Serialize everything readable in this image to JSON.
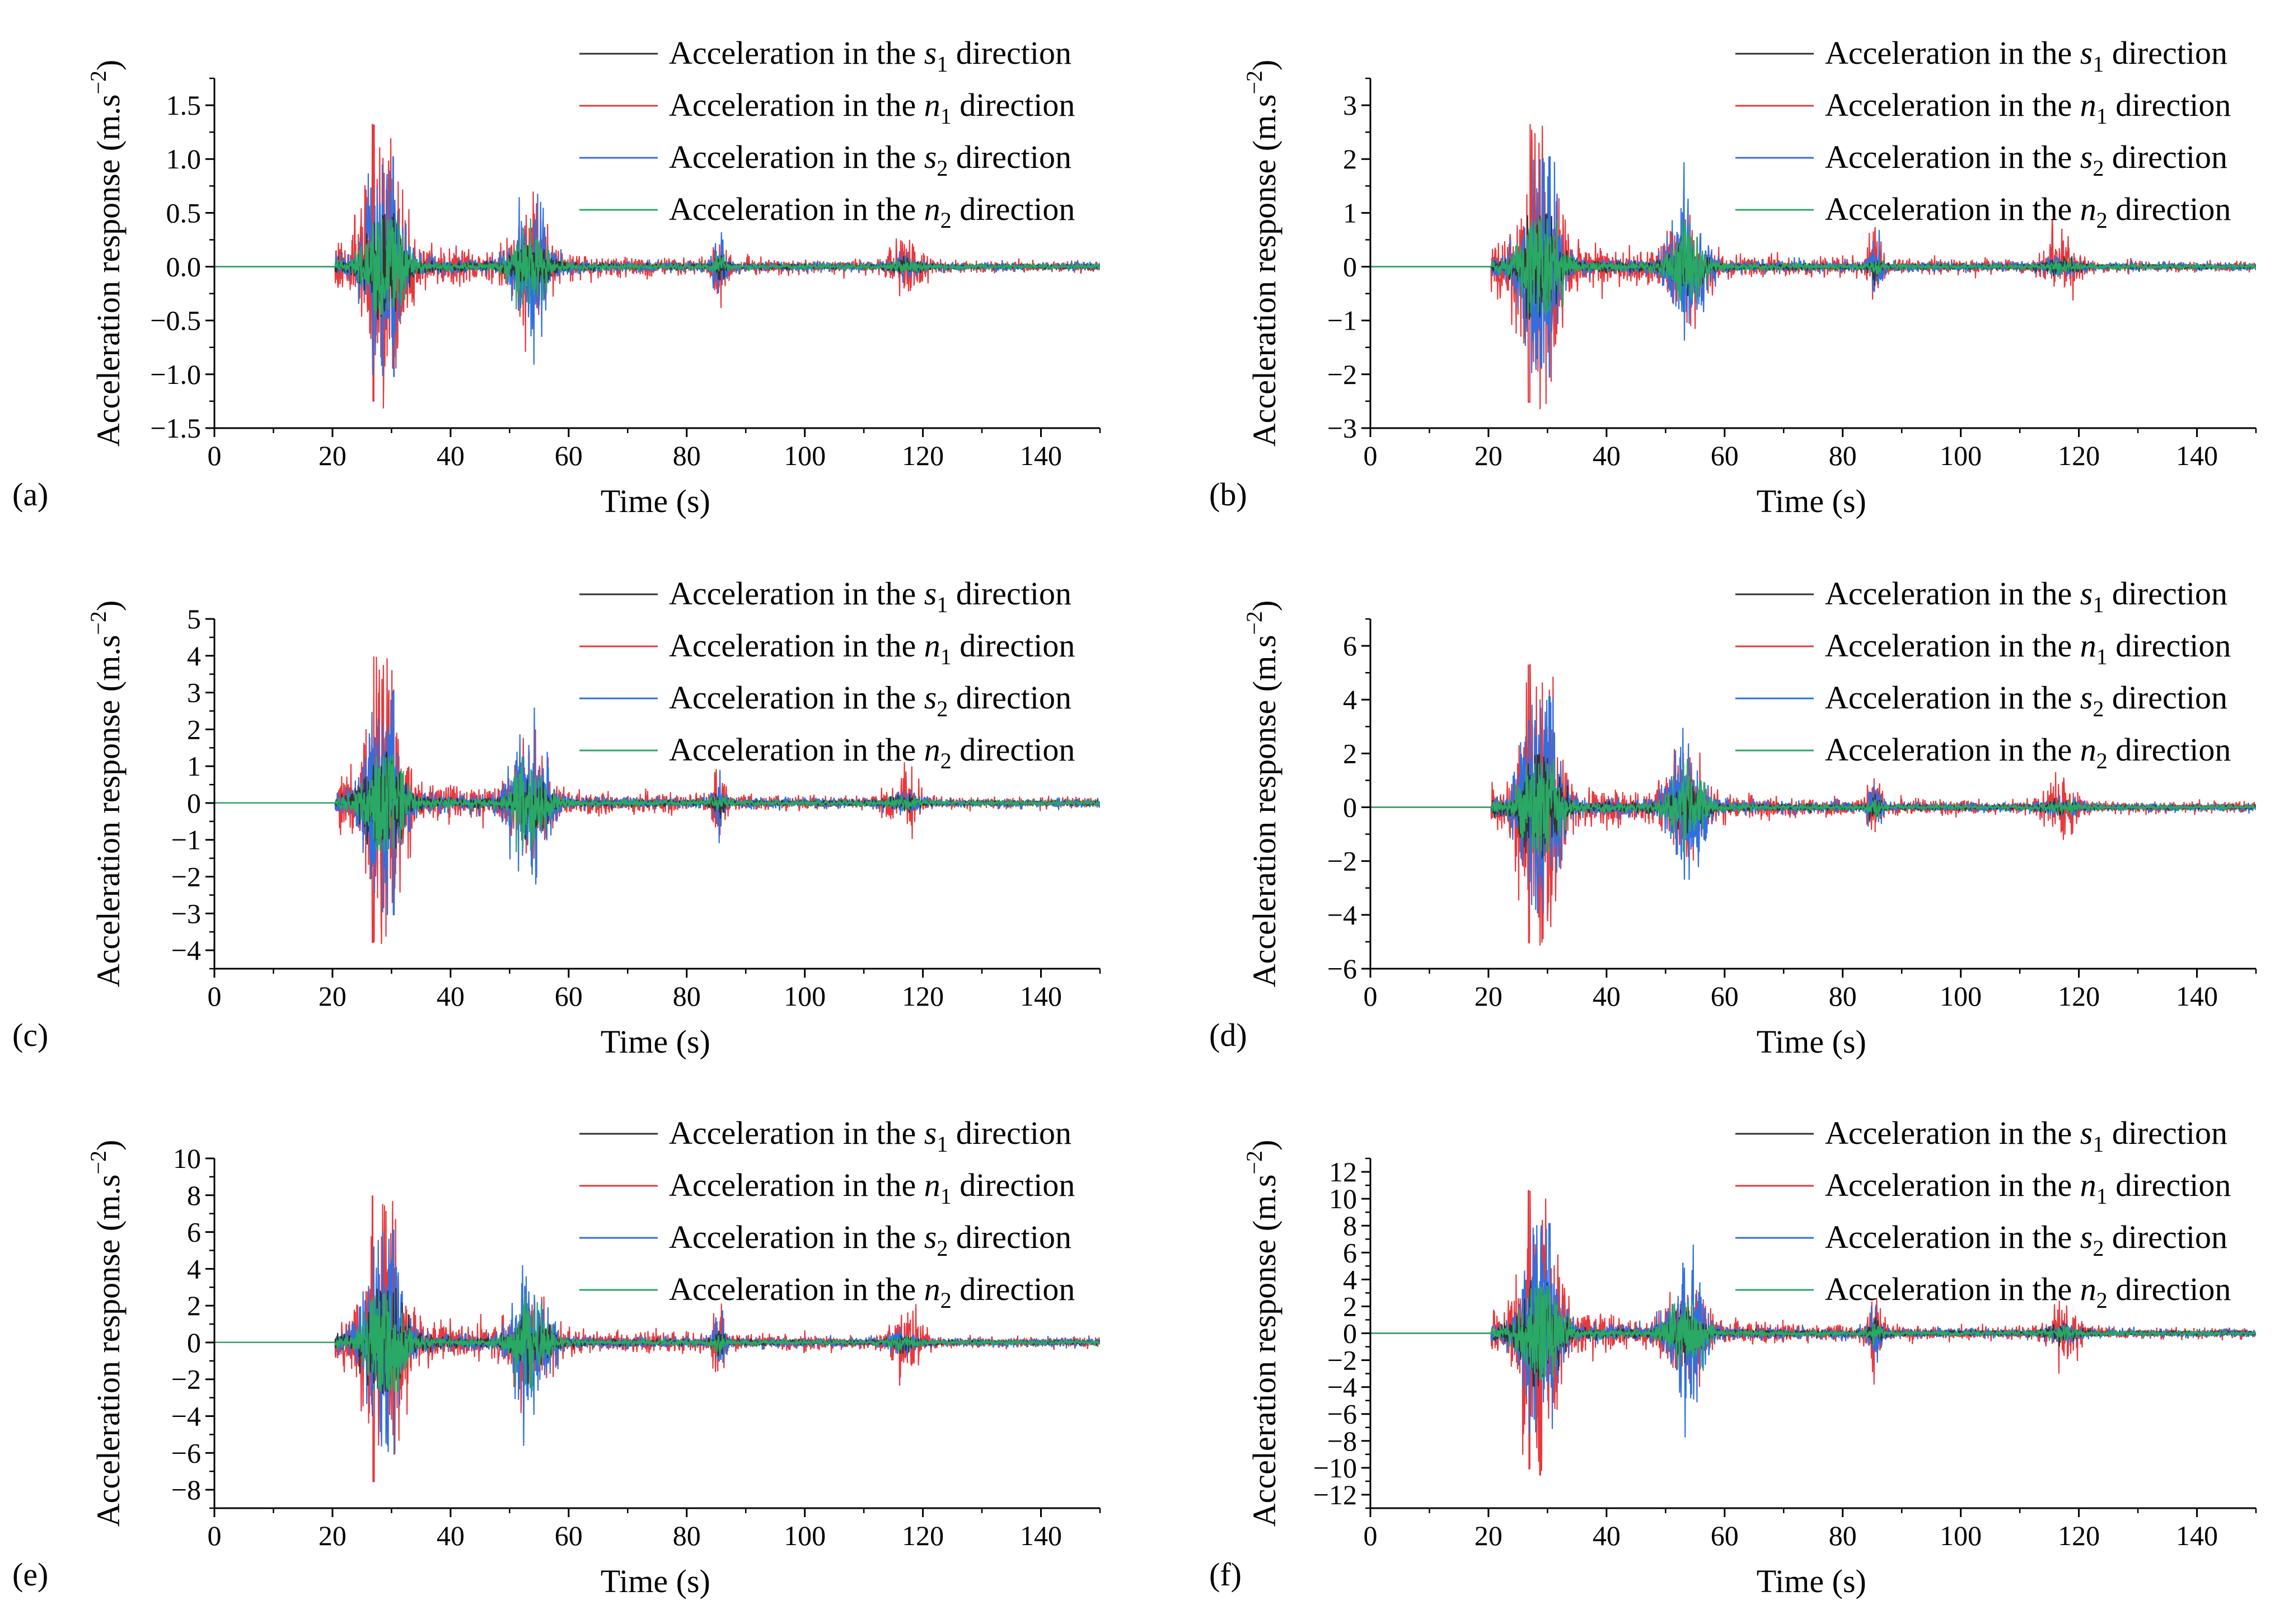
{
  "chart_data": [
    {
      "type": "line",
      "panel_label": "(a)",
      "xlabel": "Time (s)",
      "ylabel": "Acceleration response (m.s",
      "ylabel_sup": "−2",
      "xlim": [
        0,
        150
      ],
      "ylim": [
        -1.5,
        1.75
      ],
      "xticks": [
        0,
        20,
        40,
        60,
        80,
        100,
        120,
        140
      ],
      "yticks": [
        -1.5,
        -1.0,
        -0.5,
        0.0,
        0.5,
        1.0,
        1.5
      ],
      "ytick_labels": [
        "−1.5",
        "−1.0",
        "−0.5",
        "0.0",
        "0.5",
        "1.0",
        "1.5"
      ],
      "legend_position": "top-right",
      "series": [
        {
          "name": "Acceleration in the ",
          "var": "s",
          "sub": "1",
          "suffix": " direction",
          "color": "#333333",
          "peak": 0.5,
          "sd": 0.09
        },
        {
          "name": "Acceleration in the ",
          "var": "n",
          "sub": "1",
          "suffix": " direction",
          "color": "#e8383d",
          "peak": 1.32,
          "sd": 0.22
        },
        {
          "name": "Acceleration in the ",
          "var": "s",
          "sub": "2",
          "suffix": " direction",
          "color": "#2f6fe0",
          "peak": 1.02,
          "sd": 0.19
        },
        {
          "name": "Acceleration in the ",
          "var": "n",
          "sub": "2",
          "suffix": " direction",
          "color": "#2aa865",
          "peak": 0.45,
          "sd": 0.11
        }
      ]
    },
    {
      "type": "line",
      "panel_label": "(b)",
      "xlabel": "Time (s)",
      "ylabel": "Acceleration response (m.s",
      "ylabel_sup": "−2",
      "xlim": [
        0,
        150
      ],
      "ylim": [
        -3,
        3.5
      ],
      "xticks": [
        0,
        20,
        40,
        60,
        80,
        100,
        120,
        140
      ],
      "yticks": [
        -3,
        -2,
        -1,
        0,
        1,
        2,
        3
      ],
      "ytick_labels": [
        "−3",
        "−2",
        "−1",
        "0",
        "1",
        "2",
        "3"
      ],
      "legend_position": "top-right",
      "series": [
        {
          "name": "Acceleration in the ",
          "var": "s",
          "sub": "1",
          "suffix": " direction",
          "color": "#333333",
          "peak": 1.0,
          "sd": 0.18
        },
        {
          "name": "Acceleration in the ",
          "var": "n",
          "sub": "1",
          "suffix": " direction",
          "color": "#e8383d",
          "peak": 2.65,
          "sd": 0.44
        },
        {
          "name": "Acceleration in the ",
          "var": "s",
          "sub": "2",
          "suffix": " direction",
          "color": "#2f6fe0",
          "peak": 2.05,
          "sd": 0.38
        },
        {
          "name": "Acceleration in the ",
          "var": "n",
          "sub": "2",
          "suffix": " direction",
          "color": "#2aa865",
          "peak": 0.9,
          "sd": 0.22
        }
      ]
    },
    {
      "type": "line",
      "panel_label": "(c)",
      "xlabel": "Time (s)",
      "ylabel": "Acceleration response (m.s",
      "ylabel_sup": "−2",
      "xlim": [
        0,
        150
      ],
      "ylim": [
        -4.5,
        5
      ],
      "xticks": [
        0,
        20,
        40,
        60,
        80,
        100,
        120,
        140
      ],
      "yticks": [
        -4,
        -3,
        -2,
        -1,
        0,
        1,
        2,
        3,
        4,
        5
      ],
      "ytick_labels": [
        "−4",
        "−3",
        "−2",
        "−1",
        "0",
        "1",
        "2",
        "3",
        "4",
        "5"
      ],
      "legend_position": "top-right",
      "series": [
        {
          "name": "Acceleration in the ",
          "var": "s",
          "sub": "1",
          "suffix": " direction",
          "color": "#333333",
          "peak": 1.5,
          "sd": 0.27
        },
        {
          "name": "Acceleration in the ",
          "var": "n",
          "sub": "1",
          "suffix": " direction",
          "color": "#e8383d",
          "peak": 3.98,
          "sd": 0.66
        },
        {
          "name": "Acceleration in the ",
          "var": "s",
          "sub": "2",
          "suffix": " direction",
          "color": "#2f6fe0",
          "peak": 3.05,
          "sd": 0.57
        },
        {
          "name": "Acceleration in the ",
          "var": "n",
          "sub": "2",
          "suffix": " direction",
          "color": "#2aa865",
          "peak": 1.35,
          "sd": 0.33
        }
      ]
    },
    {
      "type": "line",
      "panel_label": "(d)",
      "xlabel": "Time (s)",
      "ylabel": "Acceleration response (m.s",
      "ylabel_sup": "−2",
      "xlim": [
        0,
        150
      ],
      "ylim": [
        -6,
        7
      ],
      "xticks": [
        0,
        20,
        40,
        60,
        80,
        100,
        120,
        140
      ],
      "yticks": [
        -6,
        -4,
        -2,
        0,
        2,
        4,
        6
      ],
      "ytick_labels": [
        "−6",
        "−4",
        "−2",
        "0",
        "2",
        "4",
        "6"
      ],
      "legend_position": "top-right",
      "series": [
        {
          "name": "Acceleration in the ",
          "var": "s",
          "sub": "1",
          "suffix": " direction",
          "color": "#333333",
          "peak": 2.0,
          "sd": 0.36
        },
        {
          "name": "Acceleration in the ",
          "var": "n",
          "sub": "1",
          "suffix": " direction",
          "color": "#e8383d",
          "peak": 5.3,
          "sd": 0.88
        },
        {
          "name": "Acceleration in the ",
          "var": "s",
          "sub": "2",
          "suffix": " direction",
          "color": "#2f6fe0",
          "peak": 4.1,
          "sd": 0.76
        },
        {
          "name": "Acceleration in the ",
          "var": "n",
          "sub": "2",
          "suffix": " direction",
          "color": "#2aa865",
          "peak": 1.8,
          "sd": 0.44
        }
      ]
    },
    {
      "type": "line",
      "panel_label": "(e)",
      "xlabel": "Time (s)",
      "ylabel": "Acceleration response (m.s",
      "ylabel_sup": "−2",
      "xlim": [
        0,
        150
      ],
      "ylim": [
        -9,
        10
      ],
      "xticks": [
        0,
        20,
        40,
        60,
        80,
        100,
        120,
        140
      ],
      "yticks": [
        -8,
        -6,
        -4,
        -2,
        0,
        2,
        4,
        6,
        8,
        10
      ],
      "ytick_labels": [
        "−8",
        "−6",
        "−4",
        "−2",
        "0",
        "2",
        "4",
        "6",
        "8",
        "10"
      ],
      "legend_position": "top-right",
      "series": [
        {
          "name": "Acceleration in the ",
          "var": "s",
          "sub": "1",
          "suffix": " direction",
          "color": "#333333",
          "peak": 3.0,
          "sd": 0.55
        },
        {
          "name": "Acceleration in the ",
          "var": "n",
          "sub": "1",
          "suffix": " direction",
          "color": "#e8383d",
          "peak": 7.95,
          "sd": 1.32
        },
        {
          "name": "Acceleration in the ",
          "var": "s",
          "sub": "2",
          "suffix": " direction",
          "color": "#2f6fe0",
          "peak": 6.1,
          "sd": 1.14
        },
        {
          "name": "Acceleration in the ",
          "var": "n",
          "sub": "2",
          "suffix": " direction",
          "color": "#2aa865",
          "peak": 2.7,
          "sd": 0.66
        }
      ]
    },
    {
      "type": "line",
      "panel_label": "(f)",
      "xlabel": "Time (s)",
      "ylabel": "Acceleration response (m.s",
      "ylabel_sup": "−2",
      "xlim": [
        0,
        150
      ],
      "ylim": [
        -13,
        13
      ],
      "xticks": [
        0,
        20,
        40,
        60,
        80,
        100,
        120,
        140
      ],
      "yticks": [
        -12,
        -10,
        -8,
        -6,
        -4,
        -2,
        0,
        2,
        4,
        6,
        8,
        10,
        12
      ],
      "ytick_labels": [
        "−12",
        "−10",
        "−8",
        "−6",
        "−4",
        "−2",
        "0",
        "2",
        "4",
        "6",
        "8",
        "10",
        "12"
      ],
      "legend_position": "top-right",
      "series": [
        {
          "name": "Acceleration in the ",
          "var": "s",
          "sub": "1",
          "suffix": " direction",
          "color": "#333333",
          "peak": 4.0,
          "sd": 0.72
        },
        {
          "name": "Acceleration in the ",
          "var": "n",
          "sub": "1",
          "suffix": " direction",
          "color": "#e8383d",
          "peak": 10.6,
          "sd": 1.76
        },
        {
          "name": "Acceleration in the ",
          "var": "s",
          "sub": "2",
          "suffix": " direction",
          "color": "#2f6fe0",
          "peak": 8.15,
          "sd": 1.52
        },
        {
          "name": "Acceleration in the ",
          "var": "n",
          "sub": "2",
          "suffix": " direction",
          "color": "#2aa865",
          "peak": 3.6,
          "sd": 0.88
        }
      ]
    }
  ]
}
